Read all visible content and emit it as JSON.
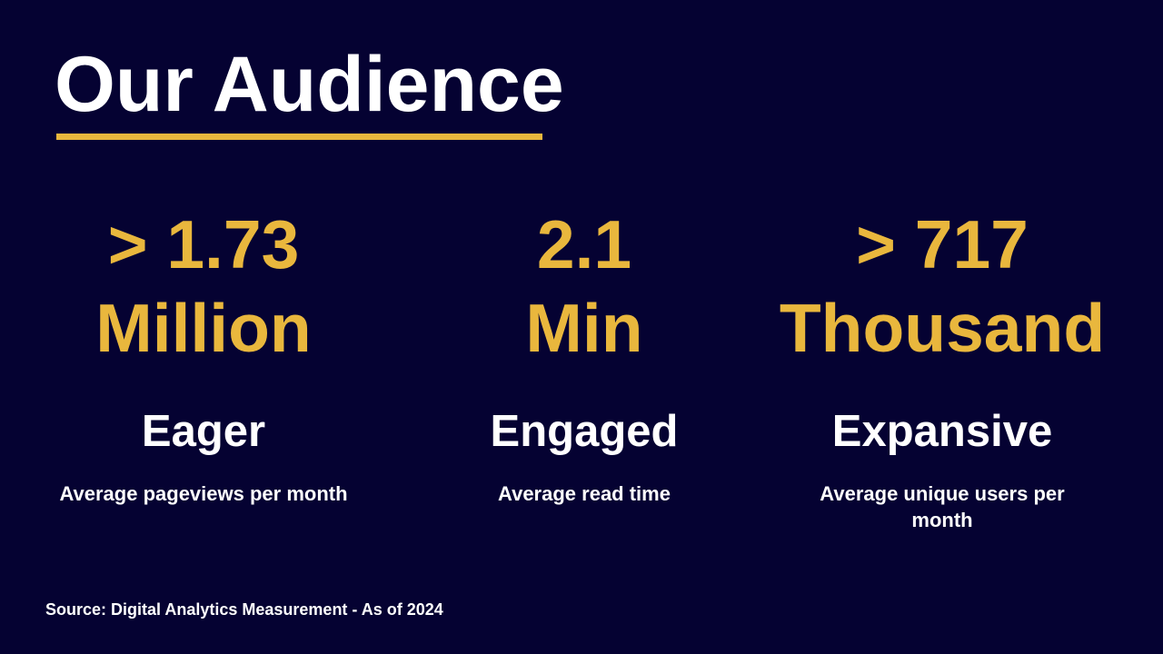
{
  "slide": {
    "title": "Our Audience",
    "source": "Source: Digital Analytics Measurement - As of 2024",
    "colors": {
      "background": "#050232",
      "accent_gold": "#E9B73D",
      "text_white": "#FFFFFF"
    },
    "stats": [
      {
        "value_line1": "> 1.73",
        "value_line2": "Million",
        "label": "Eager",
        "description": "Average pageviews per month"
      },
      {
        "value_line1": "2.1",
        "value_line2": "Min",
        "label": "Engaged",
        "description": "Average read time"
      },
      {
        "value_line1": "> 717",
        "value_line2": "Thousand",
        "label": "Expansive",
        "description": "Average unique users per month"
      }
    ]
  }
}
